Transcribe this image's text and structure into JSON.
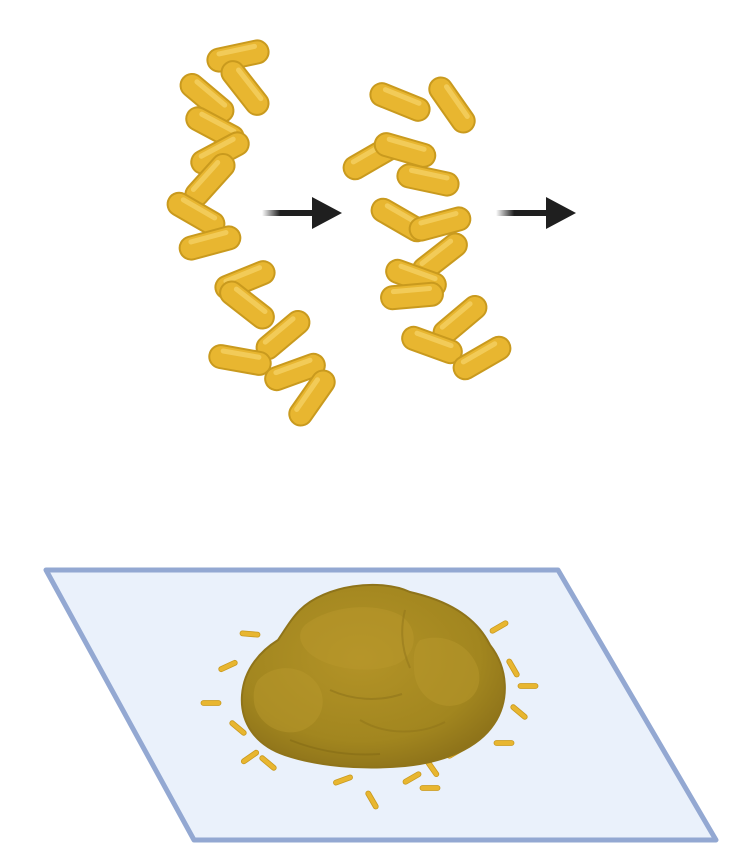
{
  "figure": {
    "background": "#ffffff",
    "colors": {
      "bacterium_fill": "#e8b630",
      "bacterium_stroke": "#c99a1e",
      "bacterium_highlight": "#f6d46a",
      "arrow": "#1f1f1f",
      "surface_fill": "#eaf1fb",
      "surface_stroke": "#93a8d2",
      "biofilm_fill": "#a88a22",
      "biofilm_shade": "#8f741a",
      "biofilm_highlight": "#c0a23c",
      "dispersed_cell": "#e8b630"
    },
    "stages": [
      {
        "name": "bacterial-chain-stage-1",
        "icon": "rod-bacteria-chain-icon"
      },
      {
        "name": "bacterial-chain-stage-2",
        "icon": "rod-bacteria-cluster-icon"
      },
      {
        "name": "biofilm-on-surface",
        "icon": "biofilm-icon"
      }
    ],
    "arrows": [
      {
        "name": "arrow-1",
        "icon": "right-arrow-icon"
      },
      {
        "name": "arrow-2",
        "icon": "right-arrow-icon"
      }
    ]
  }
}
